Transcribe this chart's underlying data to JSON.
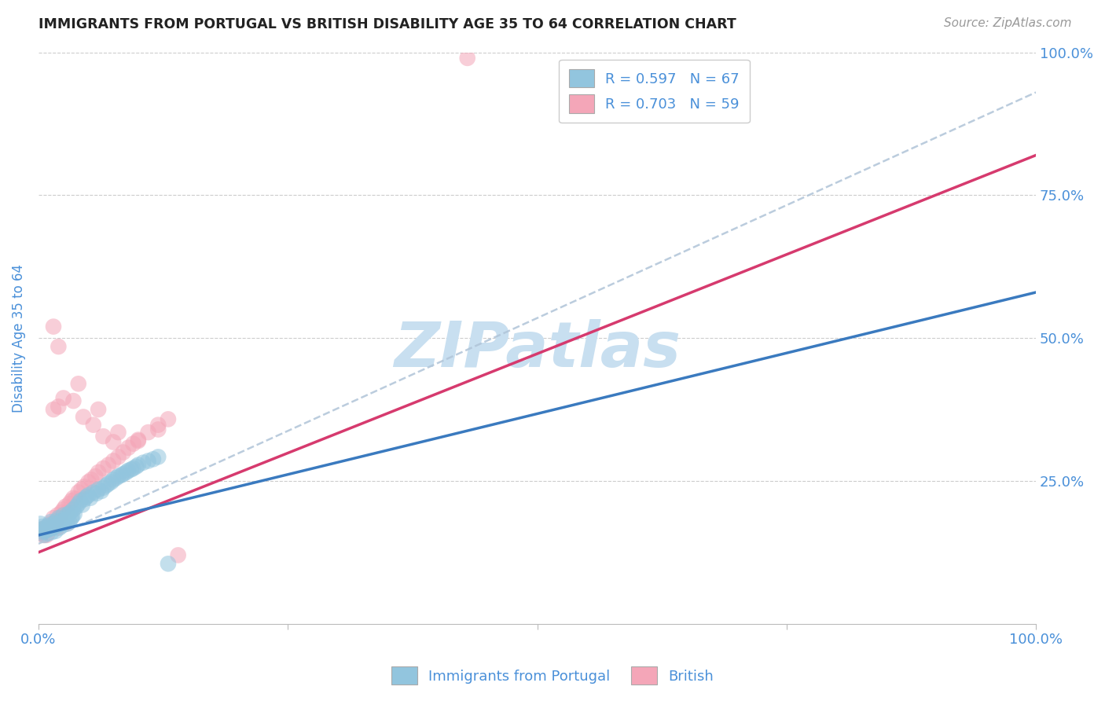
{
  "title": "IMMIGRANTS FROM PORTUGAL VS BRITISH DISABILITY AGE 35 TO 64 CORRELATION CHART",
  "source": "Source: ZipAtlas.com",
  "ylabel": "Disability Age 35 to 64",
  "xlim": [
    0.0,
    1.0
  ],
  "ylim": [
    0.0,
    1.0
  ],
  "blue_color": "#92c5de",
  "pink_color": "#f4a6b8",
  "blue_line_color": "#3a7abf",
  "pink_line_color": "#d63a6e",
  "blue_dash_color": "#b0c4d8",
  "title_color": "#222222",
  "axis_label_color": "#4a90d9",
  "tick_label_color": "#4a90d9",
  "watermark_text": "ZIPatlas",
  "watermark_color": "#c8dff0",
  "background_color": "#ffffff",
  "grid_color": "#cccccc",
  "blue_trend": [
    0.0,
    0.155,
    1.0,
    0.58
  ],
  "pink_trend": [
    0.0,
    0.125,
    1.0,
    0.82
  ],
  "blue_dash_trend": [
    0.0,
    0.14,
    1.0,
    0.93
  ],
  "blue_scatter_x": [
    0.002,
    0.003,
    0.004,
    0.005,
    0.006,
    0.007,
    0.008,
    0.009,
    0.01,
    0.011,
    0.012,
    0.013,
    0.014,
    0.015,
    0.016,
    0.017,
    0.018,
    0.019,
    0.02,
    0.021,
    0.022,
    0.023,
    0.024,
    0.025,
    0.026,
    0.027,
    0.028,
    0.029,
    0.03,
    0.031,
    0.032,
    0.033,
    0.034,
    0.035,
    0.036,
    0.038,
    0.04,
    0.042,
    0.044,
    0.046,
    0.048,
    0.05,
    0.052,
    0.055,
    0.058,
    0.06,
    0.063,
    0.065,
    0.068,
    0.07,
    0.073,
    0.075,
    0.078,
    0.08,
    0.083,
    0.085,
    0.088,
    0.09,
    0.093,
    0.095,
    0.098,
    0.1,
    0.105,
    0.11,
    0.115,
    0.12,
    0.13
  ],
  "blue_scatter_y": [
    0.175,
    0.165,
    0.17,
    0.16,
    0.155,
    0.168,
    0.162,
    0.158,
    0.172,
    0.165,
    0.178,
    0.16,
    0.17,
    0.175,
    0.168,
    0.162,
    0.18,
    0.17,
    0.185,
    0.168,
    0.175,
    0.18,
    0.172,
    0.19,
    0.178,
    0.182,
    0.188,
    0.175,
    0.192,
    0.178,
    0.195,
    0.185,
    0.188,
    0.2,
    0.192,
    0.205,
    0.21,
    0.215,
    0.208,
    0.218,
    0.222,
    0.225,
    0.22,
    0.23,
    0.228,
    0.235,
    0.232,
    0.238,
    0.242,
    0.245,
    0.248,
    0.252,
    0.255,
    0.258,
    0.26,
    0.262,
    0.265,
    0.268,
    0.27,
    0.272,
    0.275,
    0.278,
    0.282,
    0.285,
    0.288,
    0.292,
    0.105
  ],
  "pink_scatter_x": [
    0.002,
    0.003,
    0.004,
    0.005,
    0.006,
    0.007,
    0.008,
    0.009,
    0.01,
    0.011,
    0.012,
    0.013,
    0.015,
    0.017,
    0.019,
    0.021,
    0.023,
    0.025,
    0.027,
    0.029,
    0.031,
    0.033,
    0.035,
    0.037,
    0.04,
    0.043,
    0.046,
    0.05,
    0.053,
    0.057,
    0.06,
    0.065,
    0.07,
    0.075,
    0.08,
    0.085,
    0.09,
    0.095,
    0.1,
    0.11,
    0.12,
    0.13,
    0.015,
    0.02,
    0.025,
    0.035,
    0.045,
    0.055,
    0.065,
    0.075,
    0.015,
    0.02,
    0.04,
    0.06,
    0.08,
    0.1,
    0.12,
    0.14,
    0.43
  ],
  "pink_scatter_y": [
    0.165,
    0.158,
    0.162,
    0.155,
    0.16,
    0.168,
    0.155,
    0.162,
    0.17,
    0.165,
    0.175,
    0.168,
    0.185,
    0.178,
    0.19,
    0.185,
    0.195,
    0.2,
    0.205,
    0.195,
    0.21,
    0.215,
    0.22,
    0.218,
    0.23,
    0.235,
    0.24,
    0.248,
    0.252,
    0.258,
    0.265,
    0.272,
    0.278,
    0.285,
    0.292,
    0.3,
    0.308,
    0.315,
    0.322,
    0.335,
    0.348,
    0.358,
    0.375,
    0.38,
    0.395,
    0.39,
    0.362,
    0.348,
    0.328,
    0.318,
    0.52,
    0.485,
    0.42,
    0.375,
    0.335,
    0.32,
    0.34,
    0.12,
    0.99
  ]
}
